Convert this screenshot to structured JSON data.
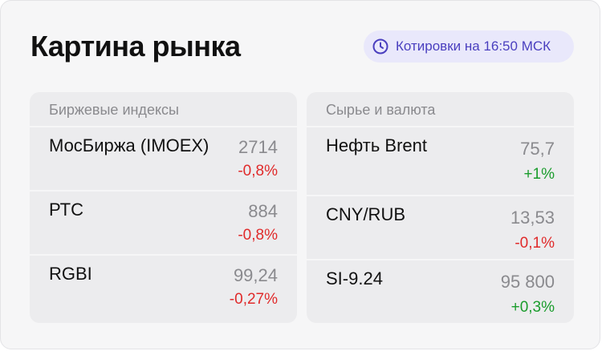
{
  "title": "Картина рынка",
  "badge": {
    "text": "Котировки на 16:50 МСК",
    "icon": "clock-icon"
  },
  "colors": {
    "negative": "#e02a2a",
    "positive": "#1a9c2c",
    "accent": "#4a3fbf"
  },
  "indices": {
    "header": "Биржевые индексы",
    "items": [
      {
        "name": "МосБиржа (IMOEX)",
        "value": "2714",
        "change": "-0,8%"
      },
      {
        "name": "РТС",
        "value": "884",
        "change": "-0,8%"
      },
      {
        "name": "RGBI",
        "value": "99,24",
        "change": "-0,27%"
      }
    ]
  },
  "commodities": {
    "header": "Сырье и валюта",
    "items": [
      {
        "name": "Нефть Brent",
        "value": "75,7",
        "change": "+1%"
      },
      {
        "name": "CNY/RUB",
        "value": "13,53",
        "change": "-0,1%"
      },
      {
        "name": "SI-9.24",
        "value": "95 800",
        "change": "+0,3%"
      }
    ]
  }
}
